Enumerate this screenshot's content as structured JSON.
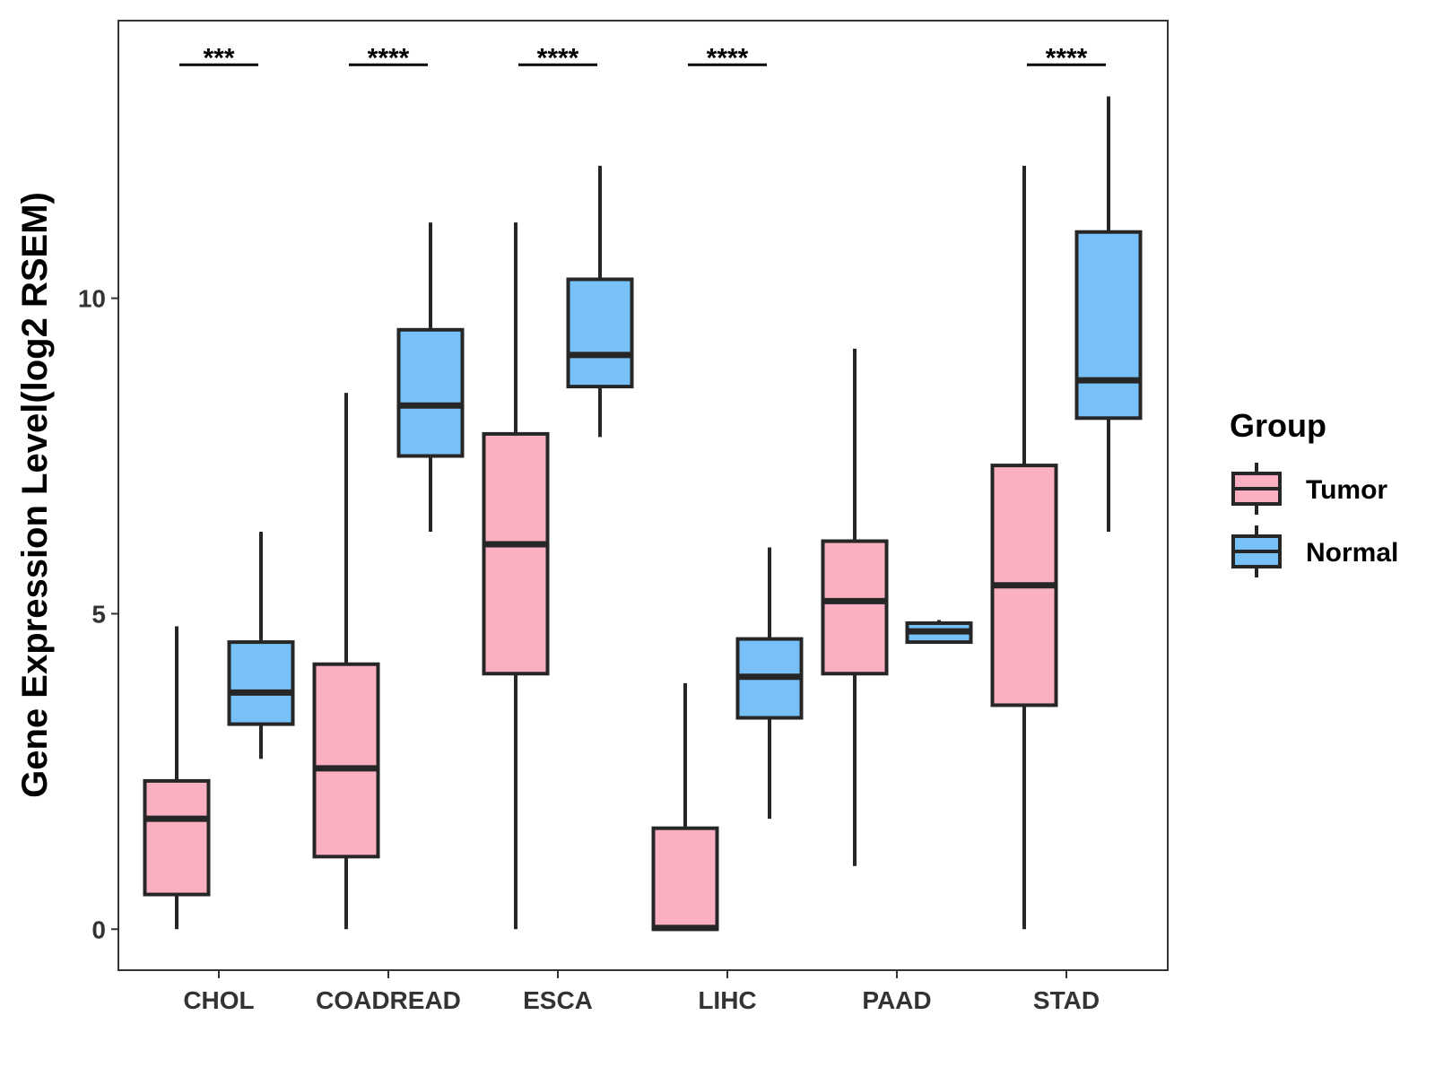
{
  "chart_data": {
    "type": "boxplot",
    "title": "",
    "xlabel": "",
    "ylabel": "Gene Expression Level(log2 RSEM)",
    "ylim": [
      -0.65,
      14.4
    ],
    "yticks": [
      0,
      5,
      10
    ],
    "grid": false,
    "legend": {
      "title": "Group",
      "placement": "right",
      "entries": [
        "Tumor",
        "Normal"
      ]
    },
    "colors": {
      "Tumor": "#FBB0C1",
      "Normal": "#77C1F8",
      "outline": "#262626"
    },
    "categories": [
      "CHOL",
      "COADREAD",
      "ESCA",
      "LIHC",
      "PAAD",
      "STAD"
    ],
    "series": [
      {
        "name": "Tumor",
        "boxes": [
          {
            "whisker_low": 0.0,
            "q1": 0.55,
            "median": 1.75,
            "q3": 2.35,
            "whisker_high": 4.8
          },
          {
            "whisker_low": 0.0,
            "q1": 1.15,
            "median": 2.55,
            "q3": 4.2,
            "whisker_high": 8.5
          },
          {
            "whisker_low": 0.0,
            "q1": 4.05,
            "median": 6.1,
            "q3": 7.85,
            "whisker_high": 11.2
          },
          {
            "whisker_low": 0.0,
            "q1": 0.0,
            "median": 0.02,
            "q3": 1.6,
            "whisker_high": 3.9
          },
          {
            "whisker_low": 1.0,
            "q1": 4.05,
            "median": 5.2,
            "q3": 6.15,
            "whisker_high": 9.2
          },
          {
            "whisker_low": 0.0,
            "q1": 3.55,
            "median": 5.45,
            "q3": 7.35,
            "whisker_high": 12.1
          }
        ]
      },
      {
        "name": "Normal",
        "boxes": [
          {
            "whisker_low": 2.7,
            "q1": 3.25,
            "median": 3.75,
            "q3": 4.55,
            "whisker_high": 6.3
          },
          {
            "whisker_low": 6.3,
            "q1": 7.5,
            "median": 8.3,
            "q3": 9.5,
            "whisker_high": 11.2
          },
          {
            "whisker_low": 7.8,
            "q1": 8.6,
            "median": 9.1,
            "q3": 10.3,
            "whisker_high": 12.1
          },
          {
            "whisker_low": 1.75,
            "q1": 3.35,
            "median": 4.0,
            "q3": 4.6,
            "whisker_high": 6.05
          },
          {
            "whisker_low": 4.55,
            "q1": 4.55,
            "median": 4.72,
            "q3": 4.85,
            "whisker_high": 4.9
          },
          {
            "whisker_low": 6.3,
            "q1": 8.1,
            "median": 8.7,
            "q3": 11.05,
            "whisker_high": 13.2
          }
        ]
      }
    ],
    "annotations": [
      {
        "category": "CHOL",
        "label": "***"
      },
      {
        "category": "COADREAD",
        "label": "****"
      },
      {
        "category": "ESCA",
        "label": "****"
      },
      {
        "category": "LIHC",
        "label": "****"
      },
      {
        "category": "PAAD",
        "label": ""
      },
      {
        "category": "STAD",
        "label": "****"
      }
    ],
    "significance_y": 13.7
  }
}
